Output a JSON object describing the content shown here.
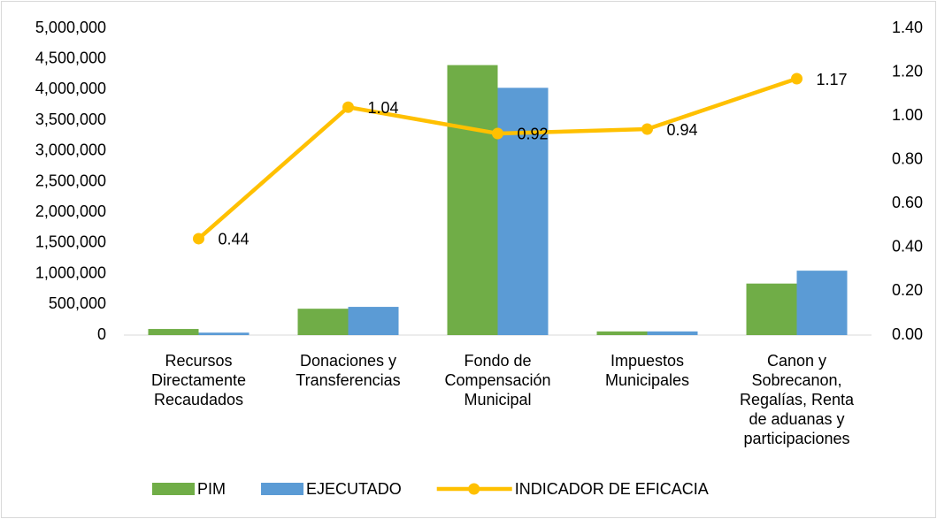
{
  "chart_data": {
    "type": "bar_line",
    "categories": [
      "Recursos Directamente Recaudados",
      "Donaciones y Transferencias",
      "Fondo de Compensación Municipal",
      "Impuestos Municipales",
      "Canon y Sobrecanon, Regalías, Renta de aduanas y participaciones"
    ],
    "series": [
      {
        "name": "PIM",
        "type": "bar",
        "color": "#70ad47",
        "values": [
          100000,
          430000,
          4400000,
          60000,
          840000
        ]
      },
      {
        "name": "EJECUTADO",
        "type": "bar",
        "color": "#5b9bd5",
        "values": [
          40000,
          460000,
          4030000,
          60000,
          1050000
        ]
      },
      {
        "name": "INDICADOR DE EFICACIA",
        "type": "line",
        "axis": "y2",
        "color": "#ffc000",
        "values": [
          0.44,
          1.04,
          0.92,
          0.94,
          1.17
        ]
      }
    ],
    "ylim": [
      0,
      5000000
    ],
    "yticks": [
      0,
      {
        "value": 500000,
        "label": "500,000"
      },
      {
        "value": 1000000,
        "label": "1,000,000"
      },
      {
        "value": 1500000,
        "label": "1,500,000"
      },
      {
        "value": 2000000,
        "label": "2,000,000"
      },
      {
        "value": 2500000,
        "label": "2,500,000"
      },
      {
        "value": 3000000,
        "label": "3,000,000"
      },
      {
        "value": 3500000,
        "label": "3,500,000"
      },
      {
        "value": 4000000,
        "label": "4,000,000"
      },
      {
        "value": 4500000,
        "label": "4,500,000"
      },
      {
        "value": 5000000,
        "label": "5,000,000"
      }
    ],
    "y2lim": [
      0,
      1.4
    ],
    "y2ticks": [
      {
        "value": 0,
        "label": "0.00"
      },
      {
        "value": 0.2,
        "label": "0.20"
      },
      {
        "value": 0.4,
        "label": "0.40"
      },
      {
        "value": 0.6,
        "label": "0.60"
      },
      {
        "value": 0.8,
        "label": "0.80"
      },
      {
        "value": 1,
        "label": "1.00"
      },
      {
        "value": 1.2,
        "label": "1.20"
      },
      {
        "value": 1.4,
        "label": "1.40"
      }
    ],
    "legend": "bottom"
  }
}
